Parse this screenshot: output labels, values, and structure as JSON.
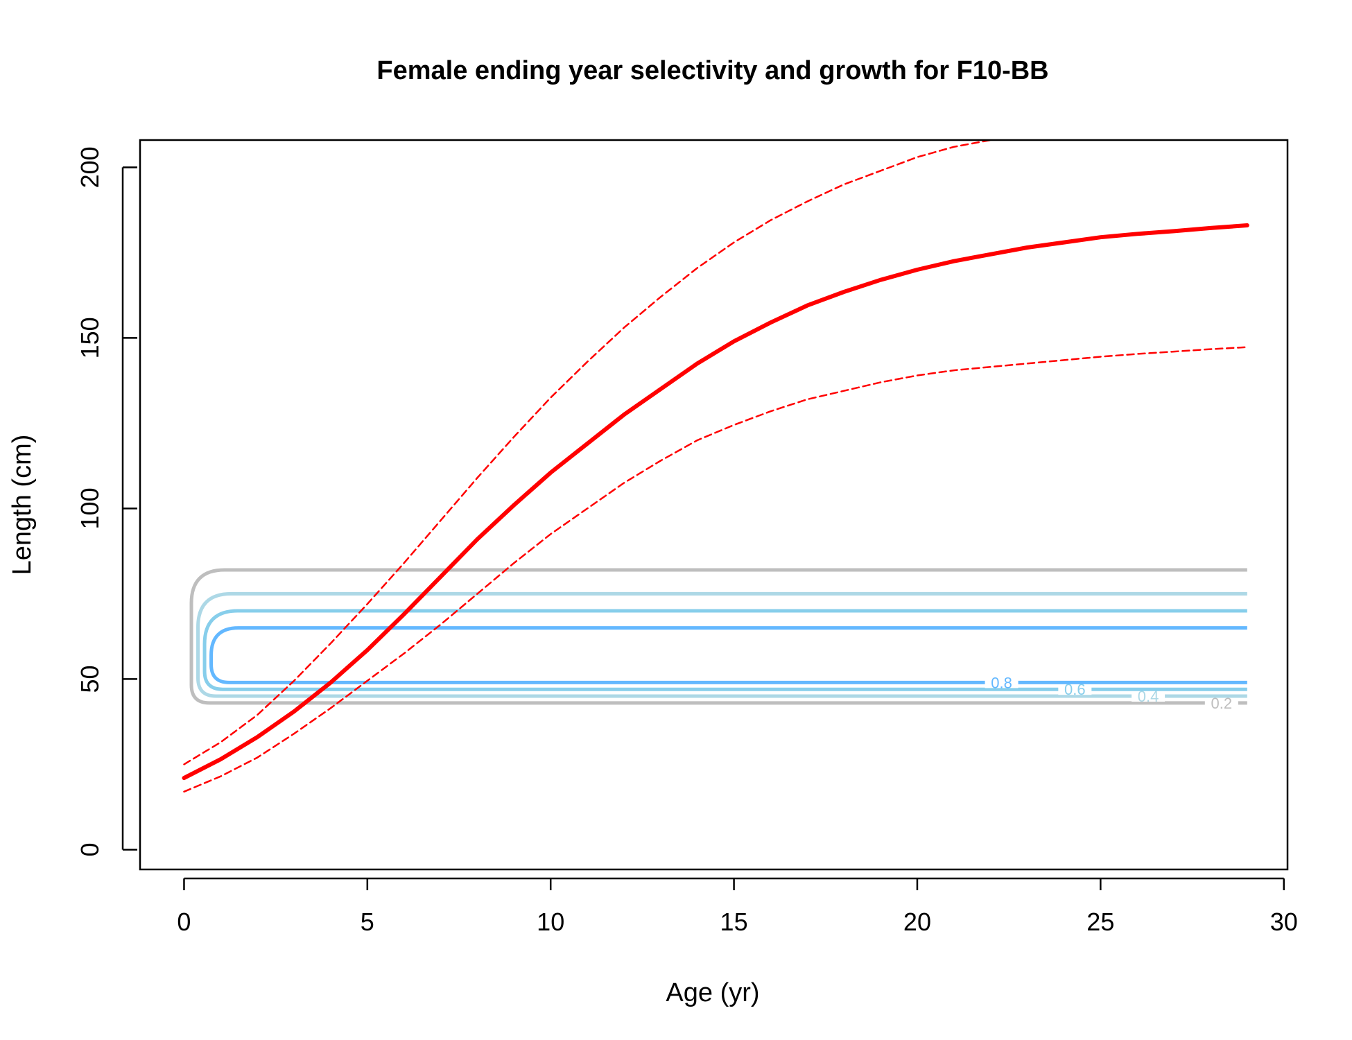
{
  "chart_data": {
    "type": "line",
    "title": "Female ending year selectivity and growth for F10-BB",
    "xlabel": "Age (yr)",
    "ylabel": "Length (cm)",
    "xlim": [
      -1.2,
      30.1
    ],
    "ylim": [
      -5.8,
      208
    ],
    "xticks": [
      0,
      5,
      10,
      15,
      20,
      25,
      30
    ],
    "yticks": [
      0,
      50,
      100,
      150,
      200
    ],
    "grid": false,
    "legend": "none",
    "growth": {
      "color": "#ff0000",
      "mean": {
        "x": [
          0,
          1,
          2,
          3,
          4,
          5,
          6,
          7,
          8,
          9,
          10,
          11,
          12,
          13,
          14,
          15,
          16,
          17,
          18,
          19,
          20,
          21,
          22,
          23,
          24,
          25,
          26,
          27,
          28,
          29
        ],
        "y": [
          21,
          26.5,
          33,
          40.5,
          49,
          58.5,
          69,
          80,
          91,
          101,
          110.5,
          119,
          127.5,
          135,
          142.5,
          149,
          154.5,
          159.5,
          163.5,
          167,
          170,
          172.5,
          174.5,
          176.5,
          178,
          179.5,
          180.5,
          181.3,
          182.2,
          183
        ]
      },
      "upper": {
        "x": [
          0,
          1,
          2,
          3,
          4,
          5,
          6,
          7,
          8,
          9,
          10,
          11,
          12,
          13,
          14,
          15,
          16,
          17,
          18,
          19,
          20,
          21,
          22
        ],
        "y": [
          25,
          31.5,
          39.5,
          49.5,
          60.5,
          72,
          84,
          96.5,
          109,
          121,
          132.5,
          143,
          153,
          162,
          170.5,
          178,
          184.5,
          190,
          195,
          199,
          203,
          206,
          208
        ]
      },
      "lower": {
        "x": [
          0,
          1,
          2,
          3,
          4,
          5,
          6,
          7,
          8,
          9,
          10,
          11,
          12,
          13,
          14,
          15,
          16,
          17,
          18,
          19,
          20,
          21,
          22,
          23,
          24,
          25,
          26,
          27,
          28,
          29
        ],
        "y": [
          17,
          21.5,
          27,
          34,
          41.5,
          49.5,
          57.5,
          66,
          75,
          84,
          92.5,
          100,
          107.5,
          114,
          120,
          124.5,
          128.5,
          132,
          134.5,
          137,
          139,
          140.5,
          141.5,
          142.5,
          143.5,
          144.5,
          145.3,
          146,
          146.7,
          147.3
        ]
      }
    },
    "selectivity_contours": [
      {
        "level": "0.2",
        "color": "#bebebe",
        "y_low": 43,
        "y_high": 82,
        "label_x": 28.3
      },
      {
        "level": "0.4",
        "color": "#add8e6",
        "y_low": 45,
        "y_high": 75,
        "label_x": 26.3
      },
      {
        "level": "0.6",
        "color": "#87ceeb",
        "y_low": 47,
        "y_high": 70,
        "label_x": 24.3
      },
      {
        "level": "0.8",
        "color": "#63b8ff",
        "y_low": 49,
        "y_high": 65,
        "label_x": 22.3
      }
    ],
    "contour_xrange": [
      0.2,
      29
    ]
  }
}
